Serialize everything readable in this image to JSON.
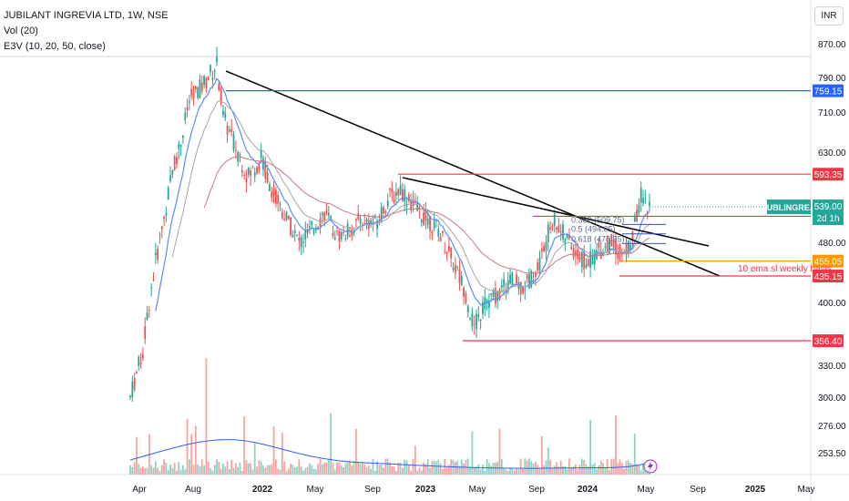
{
  "legend": {
    "title": "JUBILANT INGREVIA LTD, 1W, NSE",
    "volume": "Vol (20)",
    "ema": "E3V (10, 20, 50, close)"
  },
  "currency": "INR",
  "colors": {
    "up": "#26a69a",
    "down": "#ef5350",
    "ema_fast": "#5b8def",
    "ema_mid": "#a7a7a7",
    "ema_slow": "#c9787f",
    "blue_line": "#2962ff",
    "red_line": "#f23645",
    "orange_line": "#ff9800",
    "trendline": "#000000"
  },
  "chart_data": {
    "type": "candlestick",
    "y_scale": "log",
    "price_ticks": [
      870.0,
      790.0,
      710.0,
      630.0,
      480.0,
      400.0,
      330.0,
      300.0,
      276.0,
      253.5
    ],
    "x_ticks": [
      "Apr",
      "Aug",
      "2022",
      "May",
      "Sep",
      "2023",
      "May",
      "Sep",
      "2024",
      "May",
      "Sep",
      "2025",
      "May"
    ],
    "horizontal_levels": [
      {
        "price": 759.15,
        "label": "759.15",
        "color": "#2962ff"
      },
      {
        "price": 593.35,
        "label": "593.35",
        "color": "#f23645"
      },
      {
        "price": 523.3,
        "label": "523.30",
        "color": "#f23645"
      },
      {
        "price": 455.05,
        "label": "455.05",
        "color": "#ff9800"
      },
      {
        "price": 435.15,
        "label": "435.15",
        "color": "#f23645"
      },
      {
        "price": 356.4,
        "label": "356.40",
        "color": "#f23645"
      }
    ],
    "symbol_label": "JUBLINGREA",
    "last_price": "539.00",
    "countdown": "2d 1h",
    "annotations": [
      "10 ema sl weekly basis"
    ],
    "fib_labels": [
      "0.382 (509.75)",
      "0.5 (494.05)",
      "0.618 (478.35)"
    ]
  }
}
